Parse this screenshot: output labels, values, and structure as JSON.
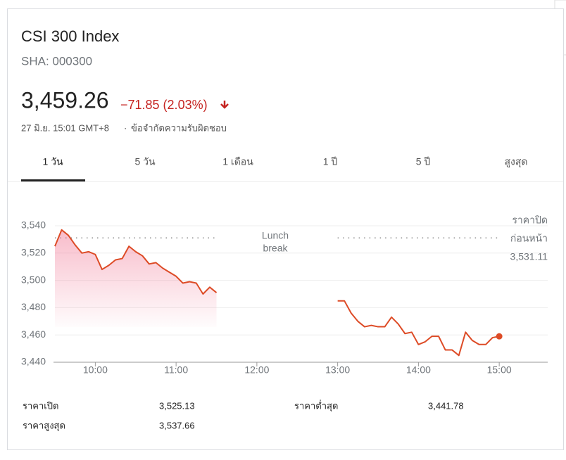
{
  "quote": {
    "name": "CSI 300 Index",
    "symbol": "SHA: 000300",
    "price": "3,459.26",
    "change": "−71.85 (2.03%)",
    "timestamp": "27 มิ.ย. 15:01 GMT+8",
    "disclaimer": "ข้อจำกัดความรับผิดชอบ"
  },
  "tabs": [
    "1 วัน",
    "5 วัน",
    "1 เดือน",
    "1 ปี",
    "5 ปี",
    "สูงสุด"
  ],
  "chart_data": {
    "type": "line",
    "color": "#dd4b26",
    "x": [
      570,
      575,
      580,
      585,
      590,
      595,
      600,
      605,
      610,
      615,
      620,
      625,
      630,
      635,
      640,
      645,
      650,
      655,
      660,
      665,
      670,
      675,
      680,
      685,
      690,
      695,
      700,
      705,
      710,
      715,
      720,
      725,
      730,
      735,
      740,
      745,
      750,
      755,
      760,
      765,
      770,
      775,
      780,
      785,
      790,
      795,
      800,
      805,
      810,
      815,
      820,
      825,
      830,
      835,
      840,
      845,
      850,
      855,
      860,
      865,
      870,
      875,
      880,
      885,
      890,
      895,
      900
    ],
    "values": [
      3525,
      3537,
      3533,
      3526,
      3520,
      3521,
      3519,
      3508,
      3511,
      3515,
      3516,
      3525,
      3521,
      3518,
      3512,
      3513,
      3509,
      3506,
      3503,
      3498,
      3499,
      3498,
      3490,
      3495,
      3491,
      null,
      null,
      null,
      null,
      null,
      null,
      null,
      null,
      null,
      null,
      null,
      null,
      null,
      null,
      null,
      null,
      null,
      3485,
      3485,
      3476,
      3470,
      3466,
      3467,
      3466,
      3466,
      3473,
      3468,
      3461,
      3462,
      3453,
      3455,
      3459,
      3459,
      3449,
      3449,
      3445,
      3462,
      3456,
      3453,
      3453,
      3458,
      3459
    ],
    "xlim": [
      570,
      936
    ],
    "xticks": [
      {
        "value": 600,
        "label": "10:00"
      },
      {
        "value": 660,
        "label": "11:00"
      },
      {
        "value": 720,
        "label": "12:00"
      },
      {
        "value": 780,
        "label": "13:00"
      },
      {
        "value": 840,
        "label": "14:00"
      },
      {
        "value": 900,
        "label": "15:00"
      }
    ],
    "ylim": [
      3440,
      3550
    ],
    "yticks": [
      {
        "value": 3440,
        "label": "3,440"
      },
      {
        "value": 3460,
        "label": "3,460"
      },
      {
        "value": 3480,
        "label": "3,480"
      },
      {
        "value": 3500,
        "label": "3,500"
      },
      {
        "value": 3520,
        "label": "3,520"
      },
      {
        "value": 3540,
        "label": "3,540"
      }
    ],
    "grid": true,
    "previous_close": {
      "value": 3531.11,
      "label": "3,531.11",
      "text": [
        "ราคาปิด",
        "ก่อนหน้า"
      ]
    },
    "annotation": [
      "Lunch",
      "break"
    ]
  },
  "stats": [
    {
      "label": "ราคาเปิด",
      "value": "3,525.13"
    },
    {
      "label": "ราคาต่ำสุด",
      "value": "3,441.78"
    },
    {
      "label": "ราคาสูงสุด",
      "value": "3,537.66"
    }
  ]
}
